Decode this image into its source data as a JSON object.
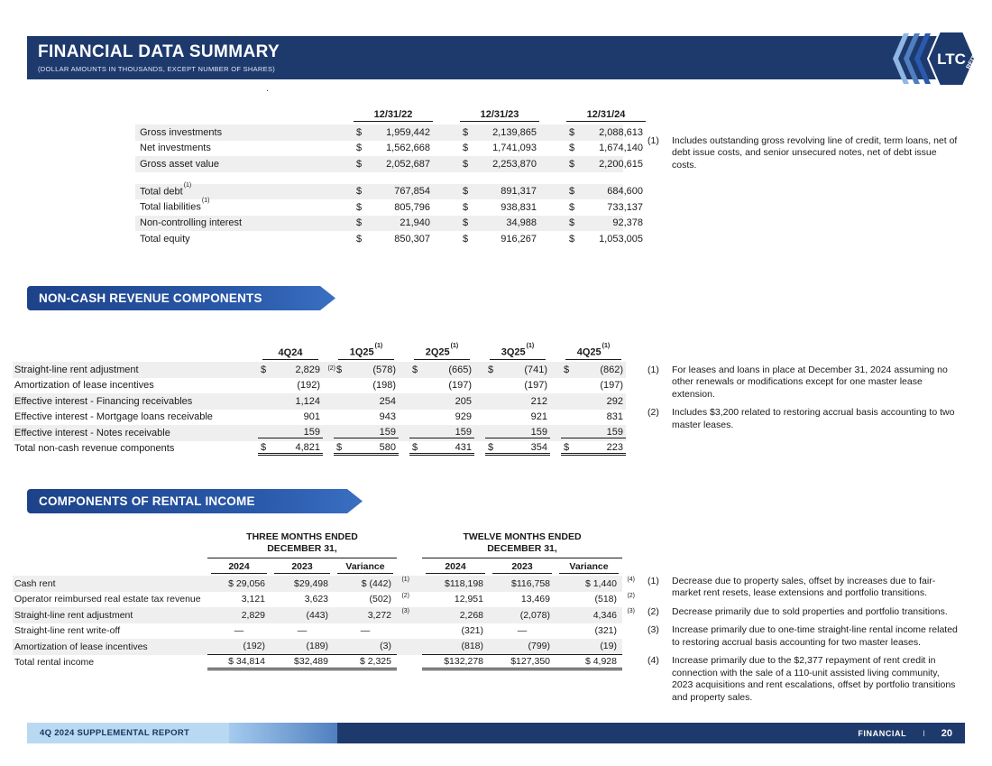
{
  "header": {
    "title": "FINANCIAL DATA SUMMARY",
    "subtitle": "(DOLLAR AMOUNTS IN THOUSANDS, EXCEPT NUMBER OF SHARES)",
    "logo": {
      "text": "LTC",
      "sub": "REIT"
    }
  },
  "stray_dot": ".",
  "balance_table": {
    "columns": [
      "12/31/22",
      "12/31/23",
      "12/31/24"
    ],
    "rows": [
      {
        "label": "Gross investments",
        "note": "",
        "values": [
          "1,959,442",
          "2,139,865",
          "2,088,613"
        ],
        "shaded": true
      },
      {
        "label": "Net investments",
        "note": "",
        "values": [
          "1,562,668",
          "1,741,093",
          "1,674,140"
        ],
        "shaded": false
      },
      {
        "label": "Gross asset value",
        "note": "",
        "values": [
          "2,052,687",
          "2,253,870",
          "2,200,615"
        ],
        "shaded": true
      },
      {
        "spacer": true
      },
      {
        "label": "Total debt",
        "note": "(1)",
        "values": [
          "767,854",
          "891,317",
          "684,600"
        ],
        "shaded": true
      },
      {
        "label": "Total liabilities",
        "note": "(1)",
        "values": [
          "805,796",
          "938,831",
          "733,137"
        ],
        "shaded": false
      },
      {
        "label": "Non-controlling interest",
        "note": "",
        "values": [
          "21,940",
          "34,988",
          "92,378"
        ],
        "shaded": true
      },
      {
        "label": "Total equity",
        "note": "",
        "values": [
          "850,307",
          "916,267",
          "1,053,005"
        ],
        "shaded": false
      }
    ],
    "footnotes": [
      {
        "num": "(1)",
        "text": "Includes outstanding gross revolving line of credit, term loans, net of debt issue costs, and senior unsecured notes, net of debt issue costs."
      }
    ]
  },
  "noncash": {
    "banner": "NON-CASH REVENUE COMPONENTS",
    "columns": [
      {
        "label": "4Q24",
        "sup": ""
      },
      {
        "label": "1Q25",
        "sup": "(1)"
      },
      {
        "label": "2Q25",
        "sup": "(1)"
      },
      {
        "label": "3Q25",
        "sup": "(1)"
      },
      {
        "label": "4Q25",
        "sup": "(1)"
      }
    ],
    "rows": [
      {
        "label": "Straight-line rent adjustment",
        "shaded": true,
        "cells": [
          {
            "d": "$",
            "v": "2,829",
            "sup": "(2)"
          },
          {
            "d": "$",
            "v": "(578)"
          },
          {
            "d": "$",
            "v": "(665)"
          },
          {
            "d": "$",
            "v": "(741)"
          },
          {
            "d": "$",
            "v": "(862)"
          }
        ]
      },
      {
        "label": "Amortization of lease incentives",
        "shaded": false,
        "cells": [
          {
            "v": "(192)"
          },
          {
            "v": "(198)"
          },
          {
            "v": "(197)"
          },
          {
            "v": "(197)"
          },
          {
            "v": "(197)"
          }
        ]
      },
      {
        "label": "Effective interest - Financing receivables",
        "shaded": true,
        "cells": [
          {
            "v": "1,124"
          },
          {
            "v": "254"
          },
          {
            "v": "205"
          },
          {
            "v": "212"
          },
          {
            "v": "292"
          }
        ]
      },
      {
        "label": "Effective interest - Mortgage loans receivable",
        "shaded": false,
        "cells": [
          {
            "v": "901"
          },
          {
            "v": "943"
          },
          {
            "v": "929"
          },
          {
            "v": "921"
          },
          {
            "v": "831"
          }
        ]
      },
      {
        "label": "Effective interest - Notes receivable",
        "shaded": true,
        "rule": true,
        "cells": [
          {
            "v": "159"
          },
          {
            "v": "159"
          },
          {
            "v": "159"
          },
          {
            "v": "159"
          },
          {
            "v": "159"
          }
        ]
      },
      {
        "label": "Total non-cash revenue components",
        "shaded": false,
        "total": true,
        "cells": [
          {
            "d": "$",
            "v": "4,821"
          },
          {
            "d": "$",
            "v": "580"
          },
          {
            "d": "$",
            "v": "431"
          },
          {
            "d": "$",
            "v": "354"
          },
          {
            "d": "$",
            "v": "223"
          }
        ]
      }
    ],
    "footnotes": [
      {
        "num": "(1)",
        "text": "For leases and loans in place at December 31, 2024 assuming no other renewals or modifications except for one master lease extension."
      },
      {
        "num": "(2)",
        "text": "Includes $3,200 related to restoring accrual basis accounting to two master leases."
      }
    ]
  },
  "rental": {
    "banner": "COMPONENTS OF RENTAL INCOME",
    "groups": [
      {
        "line1": "THREE MONTHS ENDED",
        "line2": "DECEMBER 31,"
      },
      {
        "line1": "TWELVE MONTHS ENDED",
        "line2": "DECEMBER 31,"
      }
    ],
    "columns": [
      "2024",
      "2023",
      "Variance",
      "2024",
      "2023",
      "Variance"
    ],
    "rows": [
      {
        "label": "Cash rent",
        "shaded": true,
        "cells": [
          {
            "v": "$ 29,056"
          },
          {
            "v": "$29,498"
          },
          {
            "v": "$ (442)",
            "sup": "(1)"
          },
          {
            "v": "$118,198"
          },
          {
            "v": "$116,758"
          },
          {
            "v": "$ 1,440",
            "sup": "(4)"
          }
        ]
      },
      {
        "label": "Operator reimbursed real estate tax revenue",
        "shaded": false,
        "cells": [
          {
            "v": "3,121"
          },
          {
            "v": "3,623"
          },
          {
            "v": "(502)",
            "sup": "(2)"
          },
          {
            "v": "12,951"
          },
          {
            "v": "13,469"
          },
          {
            "v": "(518)",
            "sup": "(2)"
          }
        ]
      },
      {
        "label": "Straight-line rent adjustment",
        "shaded": true,
        "cells": [
          {
            "v": "2,829"
          },
          {
            "v": "(443)"
          },
          {
            "v": "3,272",
            "sup": "(3)"
          },
          {
            "v": "2,268"
          },
          {
            "v": "(2,078)"
          },
          {
            "v": "4,346",
            "sup": "(3)"
          }
        ]
      },
      {
        "label": "Straight-line rent write-off",
        "shaded": false,
        "cells": [
          {
            "v": "—"
          },
          {
            "v": "—"
          },
          {
            "v": "—"
          },
          {
            "v": "(321)"
          },
          {
            "v": "—"
          },
          {
            "v": "(321)"
          }
        ]
      },
      {
        "label": "Amortization of lease incentives",
        "shaded": true,
        "rule": true,
        "cells": [
          {
            "v": "(192)"
          },
          {
            "v": "(189)"
          },
          {
            "v": "(3)"
          },
          {
            "v": "(818)"
          },
          {
            "v": "(799)"
          },
          {
            "v": "(19)"
          }
        ]
      },
      {
        "label": "Total rental income",
        "shaded": false,
        "total": true,
        "cells": [
          {
            "v": "$ 34,814"
          },
          {
            "v": "$32,489"
          },
          {
            "v": "$ 2,325"
          },
          {
            "v": "$132,278"
          },
          {
            "v": "$127,350"
          },
          {
            "v": "$ 4,928"
          }
        ]
      }
    ],
    "footnotes": [
      {
        "num": "(1)",
        "text": "Decrease due to property sales, offset by increases due to fair-market rent resets, lease extensions and portfolio transitions."
      },
      {
        "num": "(2)",
        "text": "Decrease primarily due to sold properties and portfolio transitions."
      },
      {
        "num": "(3)",
        "text": "Increase primarily due to one-time straight-line rental income related to restoring accrual basis accounting for two master leases."
      },
      {
        "num": "(4)",
        "text": "Increase primarily due to the $2,377 repayment of rent credit in connection with the sale of a 110-unit assisted living community, 2023 acquisitions and rent escalations, offset by portfolio transitions and property sales."
      }
    ]
  },
  "footer": {
    "left": "4Q 2024 SUPPLEMENTAL REPORT",
    "section": "FINANCIAL",
    "separator": "I",
    "page": "20"
  }
}
